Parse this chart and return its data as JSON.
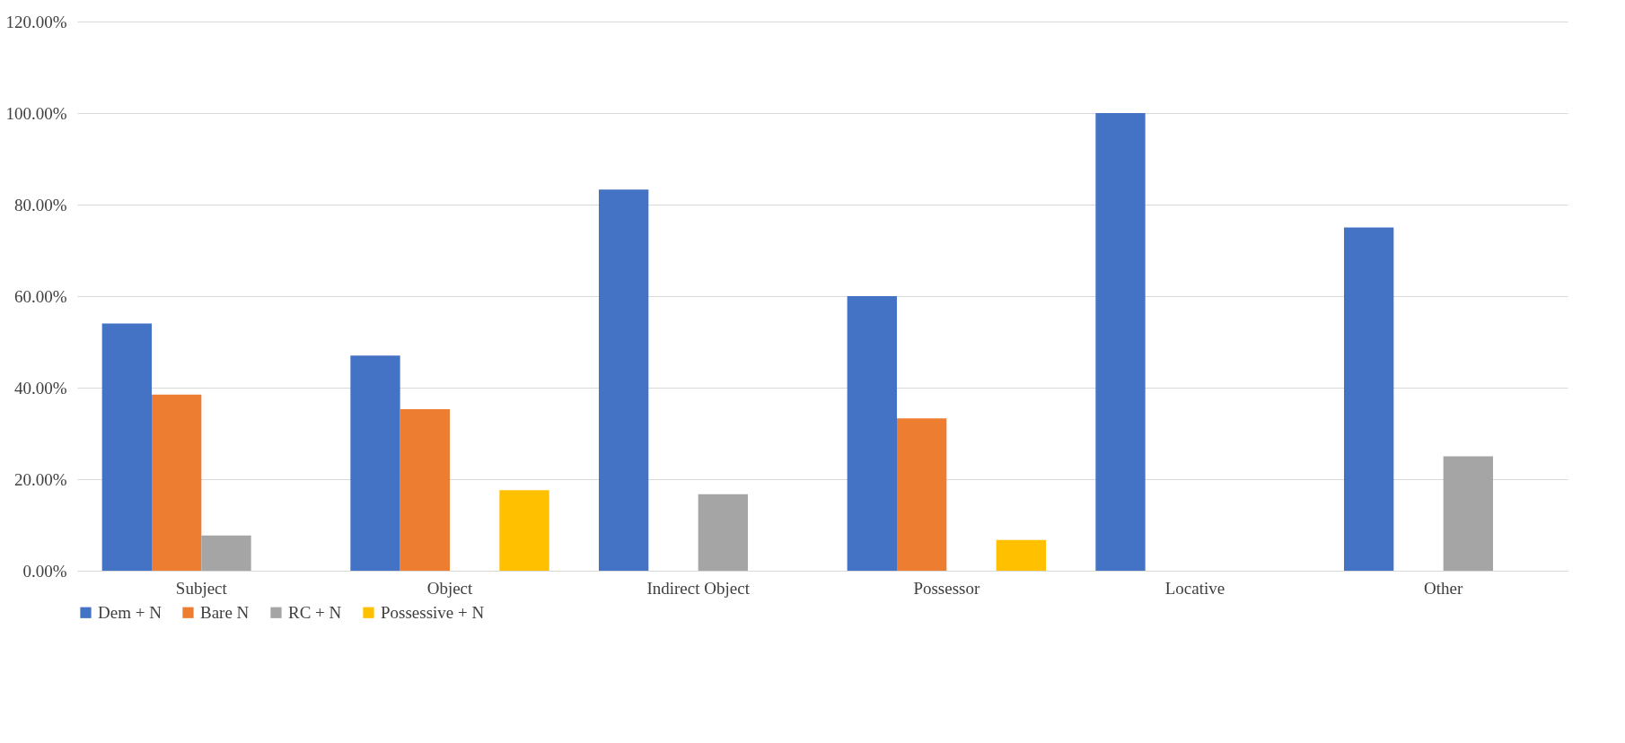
{
  "chart_data": {
    "type": "bar",
    "categories": [
      "Subject",
      "Object",
      "Indirect Object",
      "Possessor",
      "Locative",
      "Other"
    ],
    "series": [
      {
        "name": "Dem + N",
        "color": "#4472c4",
        "values": [
          54,
          47,
          83.3,
          60,
          100,
          75
        ]
      },
      {
        "name": "Bare N",
        "color": "#ed7d31",
        "values": [
          38.5,
          35.3,
          0,
          33.3,
          0,
          0
        ]
      },
      {
        "name": "RC + N",
        "color": "#a5a5a5",
        "values": [
          7.7,
          0,
          16.7,
          0,
          0,
          25
        ]
      },
      {
        "name": "Possessive + N",
        "color": "#ffc000",
        "values": [
          0,
          17.6,
          0,
          6.7,
          0,
          0
        ]
      }
    ],
    "ylim": [
      0,
      120
    ],
    "yticks": [
      {
        "value": 0,
        "label": "0.00%"
      },
      {
        "value": 20,
        "label": "20.00%"
      },
      {
        "value": 40,
        "label": "40.00%"
      },
      {
        "value": 60,
        "label": "60.00%"
      },
      {
        "value": 80,
        "label": "80.00%"
      },
      {
        "value": 100,
        "label": "100.00%"
      },
      {
        "value": 120,
        "label": "120.00%"
      }
    ],
    "grid": "y",
    "legend": "bottom"
  }
}
